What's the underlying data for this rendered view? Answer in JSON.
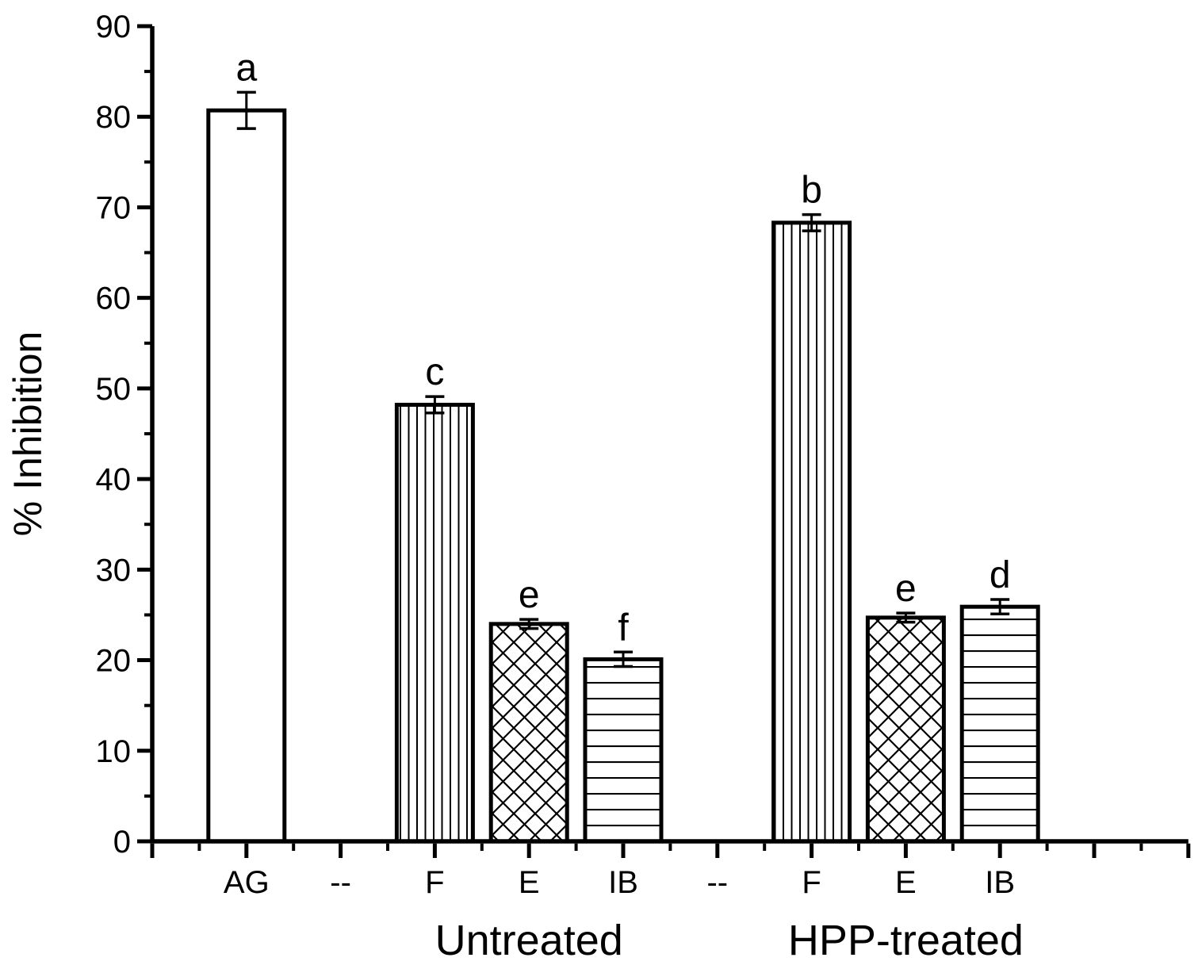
{
  "chart_data": {
    "type": "bar",
    "title": "",
    "xlabel": "",
    "ylabel": "% Inhibition",
    "ylim": [
      0,
      90
    ],
    "y_major_step": 10,
    "y_minor_step": 5,
    "y_tick_labels": [
      "0",
      "10",
      "20",
      "30",
      "40",
      "50",
      "60",
      "70",
      "80",
      "90"
    ],
    "grid": false,
    "legend": "none",
    "categories": [
      "AG",
      "--",
      "F",
      "E",
      "IB",
      "--",
      "F",
      "E",
      "IB"
    ],
    "bars": [
      {
        "category_index": 0,
        "label": "AG",
        "group": "Untreated",
        "value": 80.7,
        "error": 2.0,
        "pattern": "plain",
        "sig_letter": "a"
      },
      {
        "category_index": 2,
        "label": "F",
        "group": "Untreated",
        "value": 48.2,
        "error": 0.9,
        "pattern": "vertical-stripes",
        "sig_letter": "c"
      },
      {
        "category_index": 3,
        "label": "E",
        "group": "Untreated",
        "value": 24.0,
        "error": 0.5,
        "pattern": "crosshatch",
        "sig_letter": "e"
      },
      {
        "category_index": 4,
        "label": "IB",
        "group": "Untreated",
        "value": 20.1,
        "error": 0.8,
        "pattern": "horizontal-stripes",
        "sig_letter": "f"
      },
      {
        "category_index": 6,
        "label": "F",
        "group": "HPP-treated",
        "value": 68.3,
        "error": 0.9,
        "pattern": "vertical-stripes",
        "sig_letter": "b"
      },
      {
        "category_index": 7,
        "label": "E",
        "group": "HPP-treated",
        "value": 24.7,
        "error": 0.5,
        "pattern": "crosshatch",
        "sig_letter": "e"
      },
      {
        "category_index": 8,
        "label": "IB",
        "group": "HPP-treated",
        "value": 25.9,
        "error": 0.8,
        "pattern": "horizontal-stripes",
        "sig_letter": "d"
      }
    ],
    "group_labels": [
      {
        "text": "Untreated",
        "center_category_index": 3
      },
      {
        "text": "HPP-treated",
        "center_category_index": 7
      }
    ],
    "colors": {
      "stroke": "#000000",
      "bar_fill": "#ffffff",
      "background": "#ffffff"
    }
  }
}
